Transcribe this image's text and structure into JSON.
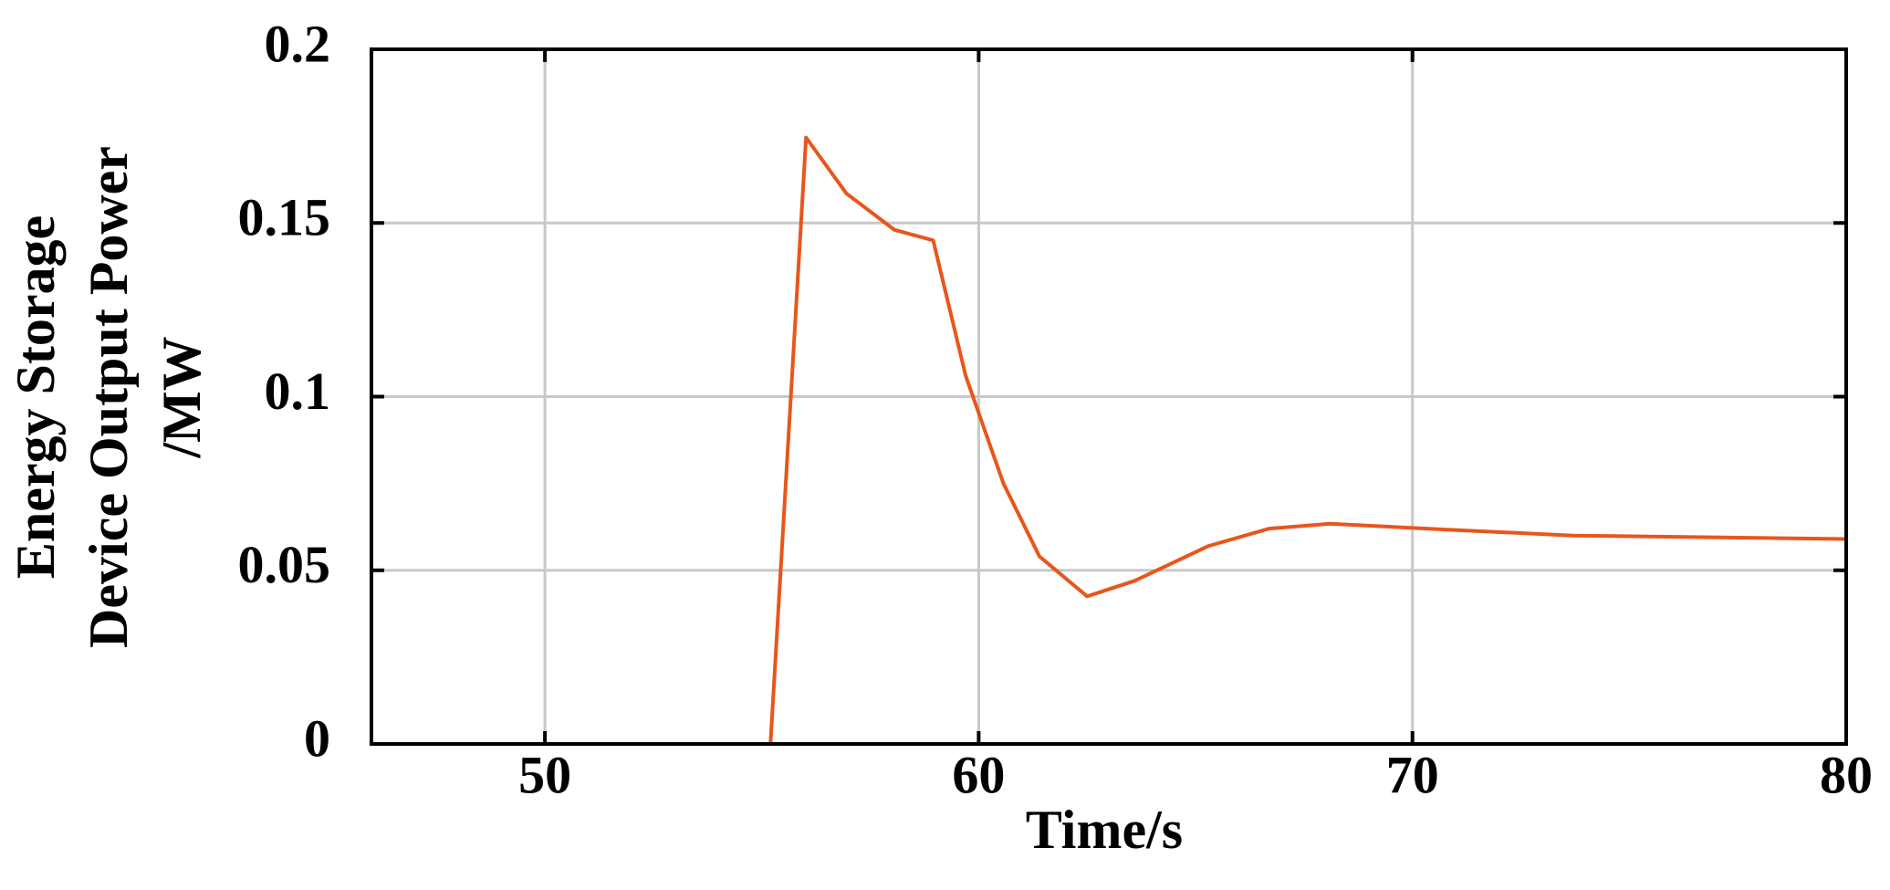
{
  "chart_data": {
    "type": "line",
    "xlabel": "Time/s",
    "ylabel": [
      "Energy Storage",
      "Device Output Power",
      "/MW"
    ],
    "x": [
      46,
      55.2,
      56.02,
      56.95,
      58.06,
      58.95,
      59.7,
      60.57,
      61.4,
      62.5,
      63.6,
      65.3,
      66.7,
      68.1,
      70.8,
      73.7,
      80
    ],
    "series": [
      {
        "color": "#e8561c",
        "values": [
          0,
          0,
          0.1746,
          0.1585,
          0.148,
          0.145,
          0.106,
          0.075,
          0.054,
          0.0425,
          0.047,
          0.057,
          0.062,
          0.0634,
          0.0617,
          0.06,
          0.059
        ]
      }
    ],
    "xlim": [
      46,
      80
    ],
    "xticks": [
      50,
      60,
      70,
      80
    ],
    "ylim": [
      0,
      0.2
    ],
    "yticks": [
      0,
      0.05,
      0.1,
      0.15,
      0.2
    ],
    "grid": true
  }
}
